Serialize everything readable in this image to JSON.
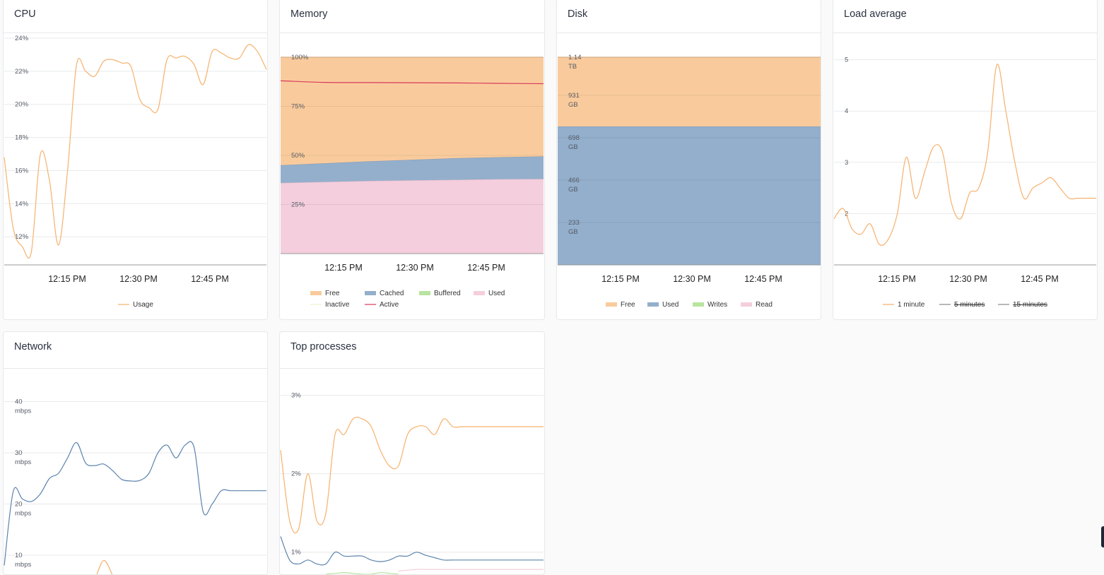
{
  "chart_data": [
    {
      "id": "cpu",
      "title": "CPU",
      "type": "line",
      "x": [
        "12:00 PM",
        "12:02 PM",
        "12:04 PM",
        "12:06 PM",
        "12:08 PM",
        "12:10 PM",
        "12:12 PM",
        "12:14 PM",
        "12:16 PM",
        "12:18 PM",
        "12:20 PM",
        "12:22 PM",
        "12:24 PM",
        "12:26 PM",
        "12:28 PM",
        "12:30 PM",
        "12:32 PM",
        "12:34 PM",
        "12:36 PM",
        "12:38 PM",
        "12:40 PM",
        "12:42 PM",
        "12:44 PM",
        "12:46 PM",
        "12:48 PM",
        "12:50 PM",
        "12:52 PM",
        "12:54 PM",
        "12:56 PM",
        "12:58 PM"
      ],
      "xticks": [
        "12:15 PM",
        "12:30 PM",
        "12:45 PM"
      ],
      "yticks": [
        "24%",
        "22%",
        "20%",
        "18%",
        "16%",
        "14%",
        "12%"
      ],
      "ylim": [
        10.3,
        24.3
      ],
      "series": [
        {
          "name": "Usage",
          "color": "#f5b16d",
          "values": [
            16.8,
            12.5,
            11.4,
            11.1,
            17.0,
            15.4,
            11.5,
            16.0,
            22.4,
            22.0,
            21.7,
            22.6,
            22.7,
            22.5,
            22.3,
            20.3,
            19.8,
            19.7,
            22.7,
            22.8,
            22.9,
            22.4,
            21.2,
            23.2,
            23.1,
            22.8,
            22.8,
            23.6,
            23.2,
            22.1
          ]
        }
      ],
      "legend": [
        {
          "label": "Usage",
          "color": "#f5b16d",
          "struck": false
        }
      ]
    },
    {
      "id": "memory",
      "title": "Memory",
      "type": "area",
      "x": [
        "12:00 PM",
        "12:10 PM",
        "12:20 PM",
        "12:30 PM",
        "12:40 PM",
        "12:50 PM",
        "12:59 PM"
      ],
      "xticks": [
        "12:15 PM",
        "12:30 PM",
        "12:45 PM"
      ],
      "yticks": [
        "100%",
        "75%",
        "50%",
        "25%"
      ],
      "ylim": [
        0,
        100
      ],
      "stacked": [
        {
          "name": "Used",
          "color": "#f4cedd",
          "values": [
            36,
            36.5,
            37,
            37.3,
            37.6,
            37.9,
            38
          ]
        },
        {
          "name": "Cached",
          "color": "#94afcc",
          "values": [
            9,
            9.5,
            10,
            10.5,
            11,
            11.2,
            11.5
          ]
        },
        {
          "name": "Free",
          "color": "#f9cb9c",
          "values": [
            55,
            54,
            53,
            52.2,
            51.4,
            50.9,
            50.5
          ]
        }
      ],
      "lines": [
        {
          "name": "Active",
          "color": "#d8395b",
          "values": [
            88,
            87.2,
            87.1,
            87,
            86.9,
            86.7,
            86.5
          ]
        }
      ],
      "legend": [
        {
          "label": "Free",
          "color": "#f9cb9c",
          "struck": false
        },
        {
          "label": "Cached",
          "color": "#94afcc",
          "struck": false
        },
        {
          "label": "Buffered",
          "color": "#b7e4a0",
          "struck": false
        },
        {
          "label": "Used",
          "color": "#f4cedd",
          "struck": false
        },
        {
          "label": "Inactive",
          "color": "#e9f3c9",
          "struck": false
        },
        {
          "label": "Active",
          "color": "#d8395b",
          "struck": false
        }
      ]
    },
    {
      "id": "disk",
      "title": "Disk",
      "type": "area",
      "x": [
        "12:00 PM",
        "12:59 PM"
      ],
      "xticks": [
        "12:15 PM",
        "12:30 PM",
        "12:45 PM"
      ],
      "yticks": [
        [
          "1.14",
          "TB"
        ],
        [
          "931",
          "GB"
        ],
        [
          "698",
          "GB"
        ],
        [
          "466",
          "GB"
        ],
        [
          "233",
          "GB"
        ]
      ],
      "ylim": [
        0,
        1140
      ],
      "stacked": [
        {
          "name": "Used",
          "color": "#94afcc",
          "values": [
            760,
            760
          ]
        },
        {
          "name": "Free",
          "color": "#f9cb9c",
          "values": [
            380,
            380
          ]
        }
      ],
      "legend": [
        {
          "label": "Free",
          "color": "#f9cb9c",
          "struck": false
        },
        {
          "label": "Used",
          "color": "#94afcc",
          "struck": false
        },
        {
          "label": "Writes",
          "color": "#b7e4a0",
          "struck": false
        },
        {
          "label": "Read",
          "color": "#f4cedd",
          "struck": false
        }
      ]
    },
    {
      "id": "load",
      "title": "Load average",
      "type": "line",
      "x": [
        "12:00 PM",
        "12:02 PM",
        "12:04 PM",
        "12:06 PM",
        "12:08 PM",
        "12:10 PM",
        "12:12 PM",
        "12:14 PM",
        "12:16 PM",
        "12:18 PM",
        "12:20 PM",
        "12:22 PM",
        "12:24 PM",
        "12:26 PM",
        "12:28 PM",
        "12:30 PM",
        "12:32 PM",
        "12:34 PM",
        "12:36 PM",
        "12:38 PM",
        "12:40 PM",
        "12:42 PM",
        "12:44 PM",
        "12:46 PM",
        "12:48 PM",
        "12:50 PM",
        "12:52 PM",
        "12:54 PM",
        "12:56 PM",
        "12:58 PM"
      ],
      "xticks": [
        "12:15 PM",
        "12:30 PM",
        "12:45 PM"
      ],
      "yticks": [
        "5",
        "4",
        "3",
        "2"
      ],
      "ylim": [
        1.0,
        5.05
      ],
      "series": [
        {
          "name": "1 minute",
          "color": "#f5b16d",
          "values": [
            1.9,
            2.1,
            1.7,
            1.6,
            1.8,
            1.4,
            1.5,
            2.0,
            3.1,
            2.3,
            2.8,
            3.3,
            3.2,
            2.2,
            1.9,
            2.4,
            2.5,
            3.2,
            4.9,
            4.0,
            3.0,
            2.3,
            2.5,
            2.6,
            2.7,
            2.5,
            2.3,
            2.3,
            2.3,
            2.3
          ]
        }
      ],
      "legend": [
        {
          "label": "1 minute",
          "color": "#f5b16d",
          "struck": false
        },
        {
          "label": "5 minutes",
          "color": "#888888",
          "struck": true
        },
        {
          "label": "15 minutes",
          "color": "#888888",
          "struck": true
        }
      ]
    },
    {
      "id": "network",
      "title": "Network",
      "type": "line",
      "x": [
        "12:00 PM",
        "12:02 PM",
        "12:04 PM",
        "12:06 PM",
        "12:08 PM",
        "12:10 PM",
        "12:12 PM",
        "12:14 PM",
        "12:16 PM",
        "12:18 PM",
        "12:20 PM",
        "12:22 PM",
        "12:24 PM",
        "12:26 PM",
        "12:28 PM",
        "12:30 PM",
        "12:32 PM",
        "12:34 PM",
        "12:36 PM",
        "12:38 PM",
        "12:40 PM",
        "12:42 PM",
        "12:44 PM",
        "12:46 PM",
        "12:48 PM",
        "12:50 PM",
        "12:52 PM",
        "12:54 PM",
        "12:56 PM",
        "12:58 PM"
      ],
      "xticks": [],
      "yticks": [
        [
          "40",
          "mbps"
        ],
        [
          "30",
          "mbps"
        ],
        [
          "20",
          "mbps"
        ],
        [
          "10",
          "mbps"
        ]
      ],
      "ylim": [
        6,
        42
      ],
      "series": [
        {
          "name": "",
          "color": "#5b83ad",
          "values": [
            8,
            22.5,
            21,
            20.5,
            22,
            25,
            26,
            29,
            32,
            28,
            27.5,
            27.8,
            26.5,
            24.8,
            24.5,
            24.6,
            26,
            30,
            31.5,
            29,
            31.5,
            31,
            18.5,
            20,
            22.6,
            22.6,
            22.6,
            22.6,
            22.6,
            22.6
          ]
        },
        {
          "name": "",
          "color": "#f5b16d",
          "values": [
            null,
            null,
            null,
            null,
            null,
            null,
            null,
            null,
            null,
            null,
            5,
            9,
            6,
            null,
            null,
            null,
            null,
            null,
            null,
            null,
            null,
            null,
            null,
            null,
            null,
            null,
            null,
            null,
            null,
            null
          ]
        }
      ],
      "legend": []
    },
    {
      "id": "top",
      "title": "Top processes",
      "type": "line",
      "x": [
        "12:00 PM",
        "12:02 PM",
        "12:04 PM",
        "12:06 PM",
        "12:08 PM",
        "12:10 PM",
        "12:12 PM",
        "12:14 PM",
        "12:16 PM",
        "12:18 PM",
        "12:20 PM",
        "12:22 PM",
        "12:24 PM",
        "12:26 PM",
        "12:28 PM",
        "12:30 PM",
        "12:32 PM",
        "12:34 PM",
        "12:36 PM",
        "12:38 PM",
        "12:40 PM",
        "12:42 PM",
        "12:44 PM",
        "12:46 PM",
        "12:48 PM",
        "12:50 PM",
        "12:52 PM",
        "12:54 PM",
        "12:56 PM",
        "12:58 PM"
      ],
      "xticks": [],
      "yticks": [
        "3%",
        "2%",
        "1%"
      ],
      "ylim": [
        0.7,
        3.05
      ],
      "series": [
        {
          "name": "",
          "color": "#f5b16d",
          "values": [
            2.3,
            1.4,
            1.3,
            2.0,
            1.4,
            1.5,
            2.5,
            2.5,
            2.7,
            2.7,
            2.6,
            2.3,
            2.1,
            2.1,
            2.5,
            2.6,
            2.6,
            2.5,
            2.7,
            2.6,
            2.6,
            2.6,
            2.6,
            2.6,
            2.6,
            2.6,
            2.6,
            2.6,
            2.6,
            2.6
          ]
        },
        {
          "name": "",
          "color": "#5b83ad",
          "values": [
            1.2,
            0.9,
            0.85,
            0.9,
            0.85,
            0.85,
            1.0,
            0.95,
            0.95,
            0.95,
            0.9,
            0.88,
            0.9,
            0.95,
            0.95,
            1.0,
            0.96,
            0.93,
            0.9,
            0.9,
            0.9,
            0.9,
            0.9,
            0.9,
            0.9,
            0.9,
            0.9,
            0.9,
            0.9,
            0.9
          ]
        },
        {
          "name": "",
          "color": "#b7e4a0",
          "values": [
            null,
            null,
            null,
            null,
            null,
            0.72,
            0.73,
            0.74,
            0.73,
            0.72,
            0.72,
            0.74,
            0.73,
            0.72,
            null,
            null,
            null,
            null,
            null,
            null,
            null,
            null,
            null,
            null,
            null,
            null,
            null,
            null,
            null,
            null
          ]
        },
        {
          "name": "",
          "color": "#f4cedd",
          "values": [
            null,
            null,
            null,
            null,
            null,
            null,
            null,
            null,
            null,
            null,
            null,
            null,
            null,
            0.76,
            0.77,
            0.78,
            0.78,
            0.78,
            0.78,
            0.78,
            0.78,
            0.78,
            0.78,
            0.78,
            0.78,
            0.78,
            0.78,
            0.78,
            0.78,
            0.78
          ]
        }
      ],
      "legend": []
    }
  ]
}
